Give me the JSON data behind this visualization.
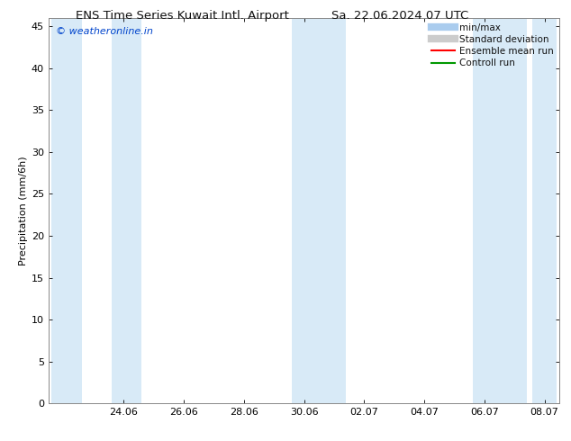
{
  "title_left": "ENS Time Series Kuwait Intl. Airport",
  "title_right": "Sa. 22.06.2024 07 UTC",
  "ylabel": "Precipitation (mm/6h)",
  "ylim": [
    0,
    46
  ],
  "yticks": [
    0,
    5,
    10,
    15,
    20,
    25,
    30,
    35,
    40,
    45
  ],
  "watermark": "© weatheronline.in",
  "background_color": "#ffffff",
  "plot_bg_color": "#ffffff",
  "band_color": "#d8eaf7",
  "legend_items": [
    {
      "label": "min/max",
      "color": "#aaccee",
      "lw": 6,
      "capstyle": "butt",
      "has_caps": true
    },
    {
      "label": "Standard deviation",
      "color": "#cccccc",
      "lw": 6,
      "capstyle": "butt",
      "has_caps": false
    },
    {
      "label": "Ensemble mean run",
      "color": "#ff0000",
      "lw": 1.5,
      "capstyle": "butt",
      "has_caps": false
    },
    {
      "label": "Controll run",
      "color": "#009900",
      "lw": 1.5,
      "capstyle": "butt",
      "has_caps": false
    }
  ],
  "x_tick_labels": [
    "24.06",
    "26.06",
    "28.06",
    "30.06",
    "02.07",
    "04.07",
    "06.07",
    "08.07"
  ],
  "x_tick_positions": [
    2,
    4,
    6,
    8,
    10,
    12,
    14,
    16
  ],
  "band_positions": [
    [
      -0.4,
      0.6
    ],
    [
      1.6,
      2.6
    ],
    [
      7.6,
      9.4
    ],
    [
      13.6,
      15.4
    ],
    [
      15.6,
      16.4
    ]
  ],
  "xmin": -0.5,
  "xmax": 16.5,
  "title_fontsize": 9.5,
  "tick_fontsize": 8,
  "ylabel_fontsize": 8
}
